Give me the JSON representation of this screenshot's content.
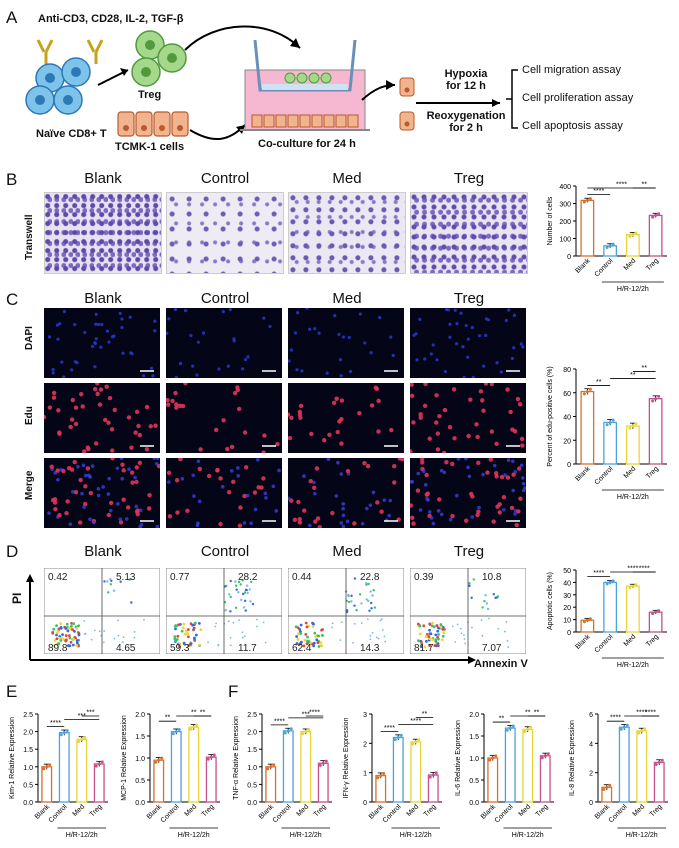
{
  "panel_A": {
    "letter": "A",
    "stimuli": "Anti-CD3, CD28, IL-2, TGF-β",
    "naive": "Naïve CD8+ T",
    "treg": "Treg",
    "tcmk": "TCMK-1 cells",
    "coculture": "Co-culture for 24 h",
    "hypoxia": "Hypoxia\nfor 12 h",
    "reox": "Reoxygenation\nfor 2 h",
    "assays": [
      "Cell migration assay",
      "Cell proliferation assay",
      "Cell apoptosis assay"
    ]
  },
  "groups": [
    "Blank",
    "Control",
    "Med",
    "Treg"
  ],
  "panel_B": {
    "letter": "B",
    "row_label": "Transwell"
  },
  "panel_C": {
    "letter": "C",
    "rows": [
      "DAPI",
      "Edu",
      "Merge"
    ]
  },
  "panel_D": {
    "letter": "D",
    "y_axis": "PI",
    "x_axis": "Annexin V",
    "quadrants": [
      {
        "ul": "0.42",
        "ur": "5.13",
        "ll": "89.8",
        "lr": "4.65"
      },
      {
        "ul": "0.77",
        "ur": "28.2",
        "ll": "59.3",
        "lr": "11.7"
      },
      {
        "ul": "0.44",
        "ur": "22.8",
        "ll": "62.4",
        "lr": "14.3"
      },
      {
        "ul": "0.39",
        "ur": "10.8",
        "ll": "81.7",
        "lr": "7.07"
      }
    ]
  },
  "panel_E": {
    "letter": "E"
  },
  "panel_F": {
    "letter": "F"
  },
  "colors": {
    "Blank": "#d9712a",
    "Control": "#4ba3dc",
    "Med": "#e9d53a",
    "Treg": "#c5508c"
  },
  "chart_data": [
    {
      "id": "B",
      "type": "bar",
      "ylabel": "Number of cells",
      "xgroup": "H/R-12/2h",
      "categories": [
        "Blank",
        "Control",
        "Med",
        "Treg"
      ],
      "values": [
        318,
        58,
        122,
        232
      ],
      "ylim": [
        0,
        400
      ],
      "yticks": [
        0,
        100,
        200,
        300,
        400
      ],
      "sig": [
        {
          "from": 0,
          "to": 1,
          "label": "****"
        },
        {
          "from": 0,
          "to": 3,
          "label": "****"
        },
        {
          "from": 2,
          "to": 3,
          "label": "**"
        }
      ]
    },
    {
      "id": "C",
      "type": "bar",
      "ylabel": "Percent of edu-positive cells (%)",
      "xgroup": "H/R-12/2h",
      "categories": [
        "Blank",
        "Control",
        "Med",
        "Treg"
      ],
      "values": [
        61,
        35,
        32,
        55
      ],
      "ylim": [
        0,
        80
      ],
      "yticks": [
        0,
        20,
        40,
        60,
        80
      ],
      "sig": [
        {
          "from": 0,
          "to": 1,
          "label": "**"
        },
        {
          "from": 1,
          "to": 3,
          "label": "**"
        },
        {
          "from": 2,
          "to": 3,
          "label": "**"
        }
      ]
    },
    {
      "id": "D",
      "type": "bar",
      "ylabel": "Apoptotic cells (%)",
      "xgroup": "H/R-12/2h",
      "categories": [
        "Blank",
        "Control",
        "Med",
        "Treg"
      ],
      "values": [
        9.5,
        40,
        37,
        16
      ],
      "ylim": [
        0,
        50
      ],
      "yticks": [
        0,
        10,
        20,
        30,
        40,
        50
      ],
      "sig": [
        {
          "from": 0,
          "to": 1,
          "label": "****"
        },
        {
          "from": 1,
          "to": 3,
          "label": "****"
        },
        {
          "from": 2,
          "to": 3,
          "label": "****"
        }
      ]
    },
    {
      "id": "E1",
      "type": "bar",
      "ylabel": "Kim-1 Relative Expression",
      "xgroup": "H/R-12/2h",
      "categories": [
        "Blank",
        "Control",
        "Med",
        "Treg"
      ],
      "values": [
        1.0,
        1.97,
        1.78,
        1.08
      ],
      "ylim": [
        0,
        2.5
      ],
      "yticks": [
        0,
        0.5,
        1.0,
        1.5,
        2.0,
        2.5
      ],
      "sig": [
        {
          "from": 0,
          "to": 1,
          "label": "****"
        },
        {
          "from": 1,
          "to": 3,
          "label": "***"
        },
        {
          "from": 2,
          "to": 3,
          "label": "***"
        }
      ]
    },
    {
      "id": "E2",
      "type": "bar",
      "ylabel": "MCP-1 Relative Expression",
      "xgroup": "H/R-12/2h",
      "categories": [
        "Blank",
        "Control",
        "Med",
        "Treg"
      ],
      "values": [
        0.95,
        1.6,
        1.7,
        1.02
      ],
      "ylim": [
        0,
        2.0
      ],
      "yticks": [
        0,
        0.5,
        1.0,
        1.5,
        2.0
      ],
      "sig": [
        {
          "from": 0,
          "to": 1,
          "label": "**"
        },
        {
          "from": 1,
          "to": 3,
          "label": "**"
        },
        {
          "from": 2,
          "to": 3,
          "label": "**"
        }
      ]
    },
    {
      "id": "F1",
      "type": "bar",
      "ylabel": "TNF-α Relative Expression",
      "xgroup": "H/R-12/2h",
      "categories": [
        "Blank",
        "Control",
        "Med",
        "Treg"
      ],
      "values": [
        1.0,
        2.02,
        2.0,
        1.1
      ],
      "ylim": [
        0,
        2.5
      ],
      "yticks": [
        0,
        0.5,
        1.0,
        1.5,
        2.0,
        2.5
      ],
      "sig": [
        {
          "from": 0,
          "to": 1,
          "label": "****"
        },
        {
          "from": 1,
          "to": 3,
          "label": "***"
        },
        {
          "from": 2,
          "to": 3,
          "label": "****"
        }
      ]
    },
    {
      "id": "F2",
      "type": "bar",
      "ylabel": "IFN-γ Relative Expression",
      "xgroup": "H/R-12/2h",
      "categories": [
        "Blank",
        "Control",
        "Med",
        "Treg"
      ],
      "values": [
        0.9,
        2.2,
        2.05,
        0.92
      ],
      "ylim": [
        0,
        3
      ],
      "yticks": [
        0,
        1,
        2,
        3
      ],
      "sig": [
        {
          "from": 0,
          "to": 1,
          "label": "****"
        },
        {
          "from": 1,
          "to": 3,
          "label": "****"
        },
        {
          "from": 2,
          "to": 3,
          "label": "**"
        }
      ]
    },
    {
      "id": "F3",
      "type": "bar",
      "ylabel": "IL-6 Relative Expression",
      "xgroup": "H/R-12/2h",
      "categories": [
        "Blank",
        "Control",
        "Med",
        "Treg"
      ],
      "values": [
        1.0,
        1.68,
        1.65,
        1.05
      ],
      "ylim": [
        0,
        2.0
      ],
      "yticks": [
        0,
        0.5,
        1.0,
        1.5,
        2.0
      ],
      "sig": [
        {
          "from": 0,
          "to": 1,
          "label": "**"
        },
        {
          "from": 1,
          "to": 3,
          "label": "**"
        },
        {
          "from": 2,
          "to": 3,
          "label": "**"
        }
      ]
    },
    {
      "id": "F4",
      "type": "bar",
      "ylabel": "IL-8 Relative Expression",
      "xgroup": "H/R-12/2h",
      "categories": [
        "Blank",
        "Control",
        "Med",
        "Treg"
      ],
      "values": [
        1.0,
        5.1,
        4.85,
        2.7
      ],
      "ylim": [
        0,
        6
      ],
      "yticks": [
        0,
        2,
        4,
        6
      ],
      "sig": [
        {
          "from": 0,
          "to": 1,
          "label": "****"
        },
        {
          "from": 1,
          "to": 3,
          "label": "****"
        },
        {
          "from": 2,
          "to": 3,
          "label": "****"
        }
      ]
    }
  ]
}
